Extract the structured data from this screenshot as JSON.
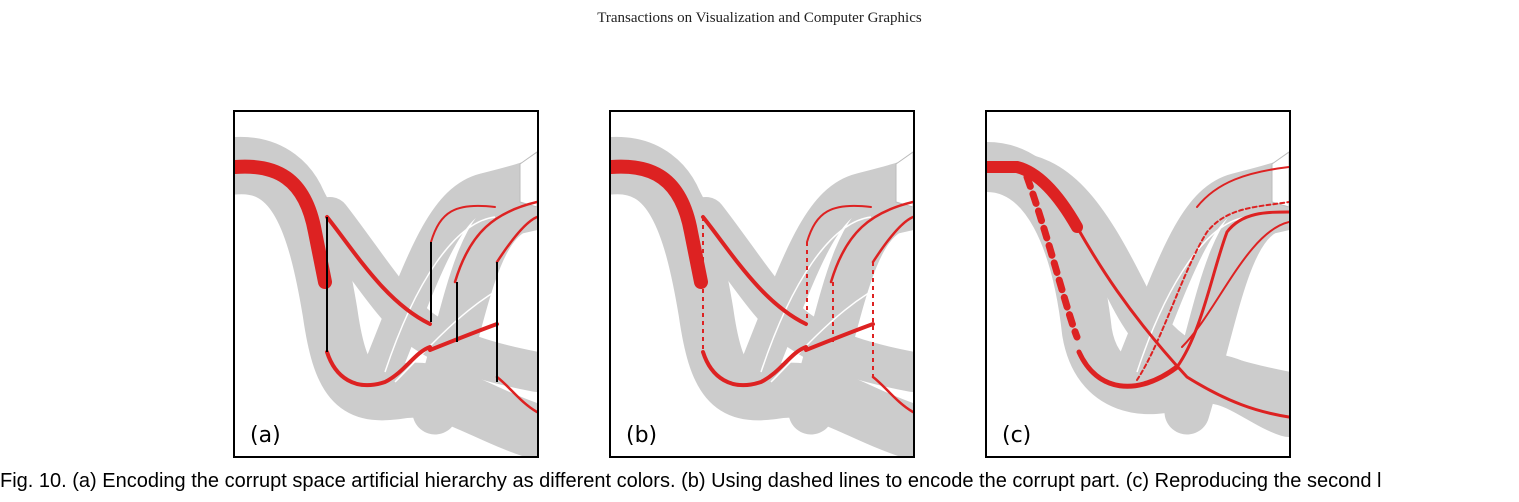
{
  "header": {
    "journal": "Transactions on Visualization and Computer Graphics"
  },
  "panels": [
    {
      "label": "(a)"
    },
    {
      "label": "(b)"
    },
    {
      "label": "(c)"
    }
  ],
  "caption": "Fig. 10. (a) Encoding the corrupt space artificial hierarchy as different colors. (b) Using dashed lines to encode the corrupt part. (c) Reproducing the second l",
  "colors": {
    "highlight": "#dd2222",
    "band": "#cccccc",
    "frame": "#000000"
  }
}
